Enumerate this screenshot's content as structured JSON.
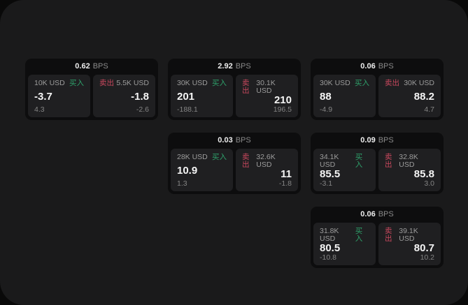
{
  "labels": {
    "buy": "买入",
    "sell": "卖出",
    "bps_unit": "BPS"
  },
  "colors": {
    "buy": "#2ea06a",
    "sell": "#c9485e",
    "panel_bg": "#1a1a1b",
    "card_bg": "#0d0d0e",
    "tile_bg": "#1f1f21",
    "price_text": "#f5f5f5",
    "muted_text": "#8a8a8a"
  },
  "cards": [
    {
      "bps": "0.62",
      "buy": {
        "size": "10K USD",
        "price": "-3.7",
        "delta": "4.3"
      },
      "sell": {
        "size": "5.5K USD",
        "price": "-1.8",
        "delta": "-2.6"
      }
    },
    {
      "bps": "2.92",
      "buy": {
        "size": "30K USD",
        "price": "201",
        "delta": "-188.1"
      },
      "sell": {
        "size": "30.1K USD",
        "price": "210",
        "delta": "196.5"
      }
    },
    {
      "bps": "0.06",
      "buy": {
        "size": "30K USD",
        "price": "88",
        "delta": "-4.9"
      },
      "sell": {
        "size": "30K USD",
        "price": "88.2",
        "delta": "4.7"
      }
    },
    {
      "bps": "0.03",
      "buy": {
        "size": "28K USD",
        "price": "10.9",
        "delta": "1.3"
      },
      "sell": {
        "size": "32.6K USD",
        "price": "11",
        "delta": "-1.8"
      }
    },
    {
      "bps": "0.09",
      "buy": {
        "size": "34.1K USD",
        "price": "85.5",
        "delta": "-3.1"
      },
      "sell": {
        "size": "32.8K USD",
        "price": "85.8",
        "delta": "3.0"
      }
    },
    {
      "bps": "0.06",
      "buy": {
        "size": "31.8K USD",
        "price": "80.5",
        "delta": "-10.8"
      },
      "sell": {
        "size": "39.1K USD",
        "price": "80.7",
        "delta": "10.2"
      }
    }
  ]
}
